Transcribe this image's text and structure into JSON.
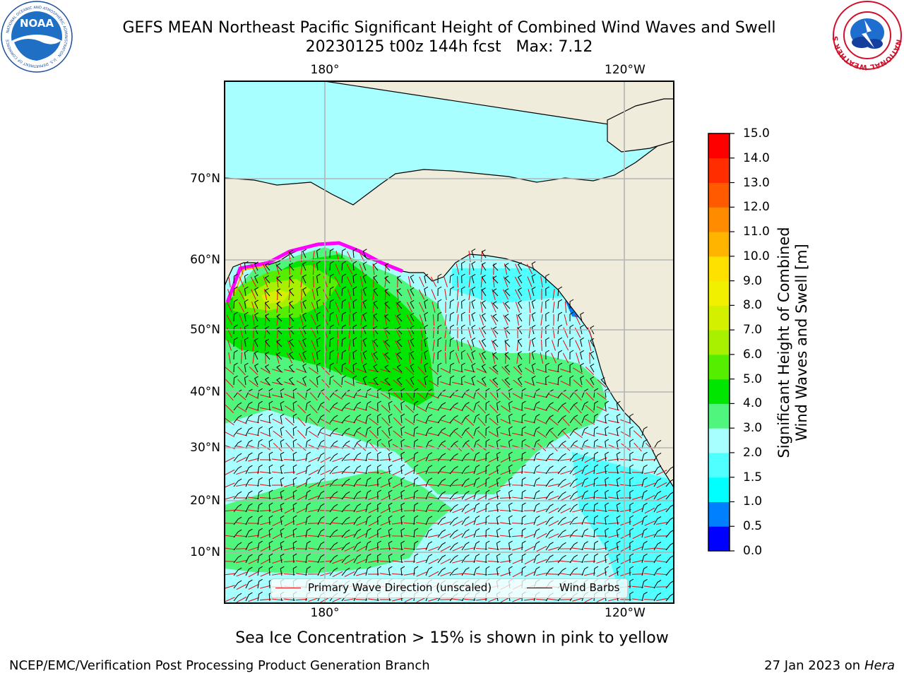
{
  "title": {
    "line1": "GEFS MEAN Northeast Pacific Significant Height of Combined Wind Waves and Swell",
    "line2": "20230125 t00z 144h fcst   Max: 7.12"
  },
  "logos": {
    "noaa": {
      "text": "NOAA",
      "ring_text": "NATIONAL OCEANIC AND ATMOSPHERIC ADMINISTRATION · U.S. DEPARTMENT OF COMMERCE"
    },
    "nws": {
      "ring_text": "NATIONAL WEATHER SERVICE"
    }
  },
  "map": {
    "longitude_labels": [
      "180°",
      "120°W"
    ],
    "latitude_labels": [
      "70°N",
      "60°N",
      "50°N",
      "40°N",
      "30°N",
      "20°N",
      "10°N"
    ],
    "gridlines": true,
    "land_color": "#efecdc",
    "wind_barb_color": "#000000",
    "wave_direction_color": "#e8131b"
  },
  "legend": {
    "placement": "bottom-center",
    "items": [
      {
        "label": "Primary Wave Direction (unscaled)",
        "color": "#e8131b"
      },
      {
        "label": "Wind Barbs",
        "color": "#000000"
      }
    ]
  },
  "colorbar": {
    "label_line1": "Significant Height of Combined",
    "label_line2": "Wind Waves and Swell [m]",
    "ticks": [
      "15.0",
      "14.0",
      "13.0",
      "12.0",
      "11.0",
      "10.0",
      "9.0",
      "8.0",
      "7.0",
      "6.0",
      "5.0",
      "4.0",
      "3.0",
      "2.0",
      "1.5",
      "1.0",
      "0.5",
      "0.0"
    ],
    "colors": [
      "#0000ff",
      "#007fff",
      "#00ffff",
      "#50ffff",
      "#a8ffff",
      "#50f57d",
      "#00e600",
      "#55ee00",
      "#a8f000",
      "#d2f000",
      "#f0f000",
      "#ffe100",
      "#ffb400",
      "#ff8c00",
      "#ff5a00",
      "#ff2d00",
      "#ff0000"
    ]
  },
  "caption": "Sea Ice Concentration > 15% is shown in pink to yellow",
  "footer": {
    "left": "NCEP/EMC/Verification Post Processing Product Generation Branch",
    "right_prefix": "27 Jan 2023 on ",
    "right_host": "Hera"
  }
}
